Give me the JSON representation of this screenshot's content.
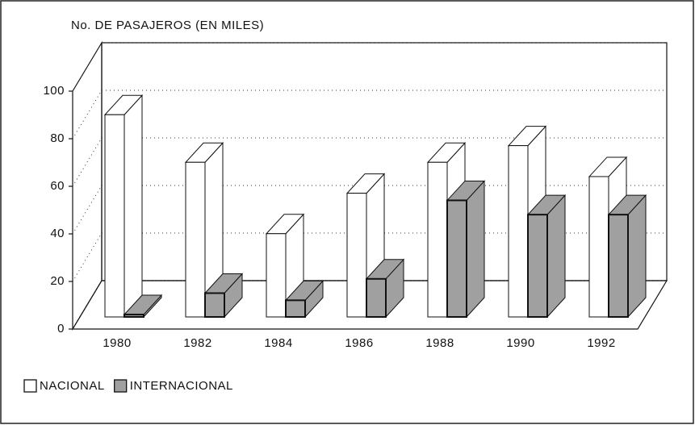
{
  "chart_data": {
    "type": "bar3d",
    "title": "No. DE PASAJEROS (EN MILES)",
    "categories": [
      "1980",
      "1982",
      "1984",
      "1986",
      "1988",
      "1990",
      "1992"
    ],
    "series": [
      {
        "name": "NACIONAL",
        "color": "#ffffff",
        "values": [
          85,
          65,
          35,
          52,
          65,
          72,
          59
        ]
      },
      {
        "name": "INTERNACIONAL",
        "color": "#a0a0a0",
        "values": [
          1,
          10,
          7,
          16,
          49,
          43,
          43
        ]
      }
    ],
    "ylim": [
      0,
      100
    ],
    "yticks": [
      0,
      20,
      40,
      60,
      80,
      100
    ],
    "grid": true
  }
}
